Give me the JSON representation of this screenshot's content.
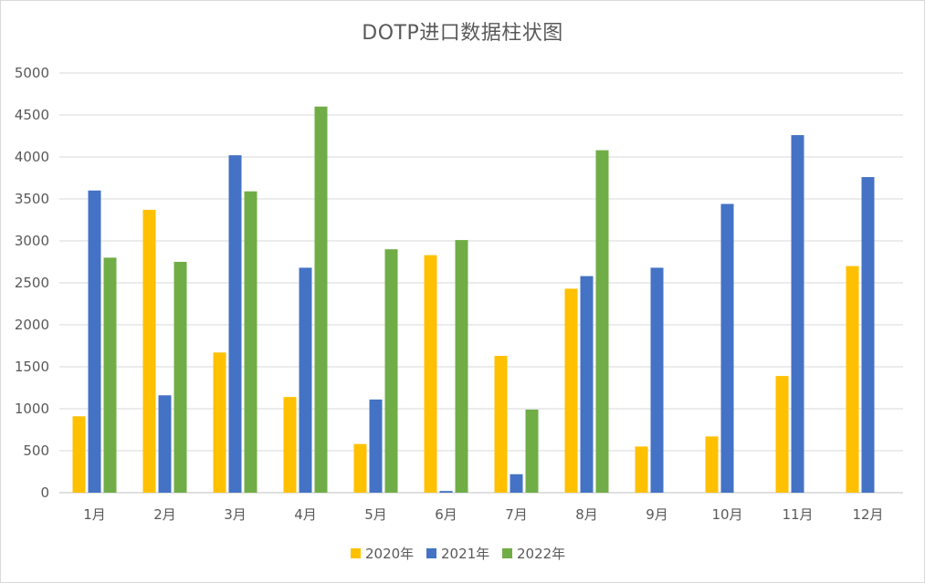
{
  "chart_data": {
    "type": "bar",
    "title": "DOTP进口数据柱状图",
    "xlabel": "",
    "ylabel": "",
    "ylim": [
      0,
      5000
    ],
    "yticks": [
      0,
      500,
      1000,
      1500,
      2000,
      2500,
      3000,
      3500,
      4000,
      4500,
      5000
    ],
    "categories": [
      "1月",
      "2月",
      "3月",
      "4月",
      "5月",
      "6月",
      "7月",
      "8月",
      "9月",
      "10月",
      "11月",
      "12月"
    ],
    "grid": true,
    "legend_position": "bottom",
    "series": [
      {
        "name": "2020年",
        "color": "#FFC000",
        "values": [
          910,
          3370,
          1670,
          1140,
          580,
          2830,
          1630,
          2430,
          550,
          670,
          1390,
          2700
        ]
      },
      {
        "name": "2021年",
        "color": "#4472C4",
        "values": [
          3600,
          1160,
          4020,
          2680,
          1110,
          20,
          220,
          2580,
          2680,
          3440,
          4260,
          3760
        ]
      },
      {
        "name": "2022年",
        "color": "#70AD47",
        "values": [
          2800,
          2750,
          3590,
          4600,
          2900,
          3010,
          990,
          4080,
          0,
          0,
          0,
          0
        ]
      }
    ]
  }
}
